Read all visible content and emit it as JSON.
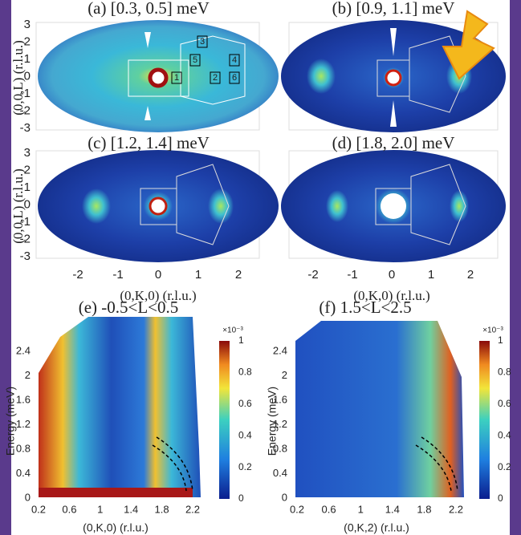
{
  "panels": [
    {
      "label": "(a) [0.3, 0.5] meV"
    },
    {
      "label": "(b) [0.9, 1.1] meV"
    },
    {
      "label": "(c) [1.2, 1.4] meV"
    },
    {
      "label": "(d) [1.8, 2.0] meV"
    }
  ],
  "panel_a_boxes": [
    "1",
    "2",
    "3",
    "4",
    "5",
    "6"
  ],
  "upper_axes": {
    "y_label": "(0,0,L) (r.l.u.)",
    "y_ticks": [
      "3",
      "2",
      "1",
      "0",
      "-1",
      "-2",
      "-3"
    ],
    "x_ticks": [
      "-2",
      "-1",
      "0",
      "1",
      "2"
    ],
    "x_label": "(0,K,0) (r.l.u.)"
  },
  "lower": [
    {
      "title": "(e) -0.5<L<0.5",
      "y_label": "Energy (meV)",
      "y_ticks": [
        "2.4",
        "2",
        "1.6",
        "1.2",
        "0.8",
        "0.4",
        "0"
      ],
      "x_ticks": [
        "0.2",
        "0.6",
        "1",
        "1.4",
        "1.8",
        "2.2"
      ],
      "x_label": "(0,K,0) (r.l.u.)",
      "colorbar_exponent": "×10⁻³",
      "colorbar_ticks": [
        "1",
        "0.8",
        "0.6",
        "0.4",
        "0.2",
        "0"
      ]
    },
    {
      "title": "(f) 1.5<L<2.5",
      "y_label": "Energy (meV)",
      "y_ticks": [
        "2.4",
        "2",
        "1.6",
        "1.2",
        "0.8",
        "0.4",
        "0"
      ],
      "x_ticks": [
        "0.2",
        "0.6",
        "1",
        "1.4",
        "1.8",
        "2.2"
      ],
      "x_label": "(0,K,2) (r.l.u.)",
      "colorbar_exponent": "×10⁻³",
      "colorbar_ticks": [
        "1",
        "0.8",
        "0.6",
        "0.4",
        "0.2",
        "0"
      ]
    }
  ]
}
